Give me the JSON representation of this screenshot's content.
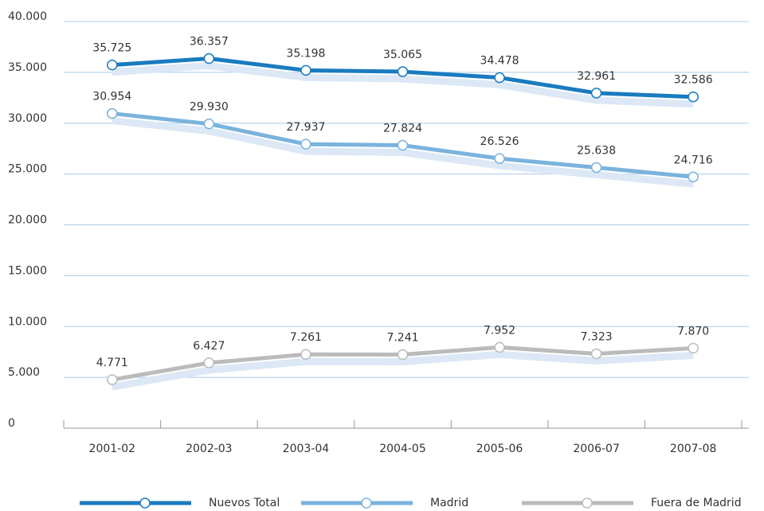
{
  "chart_data": {
    "type": "line",
    "categories": [
      "2001-02",
      "2002-03",
      "2003-04",
      "2004-05",
      "2005-06",
      "2006-07",
      "2007-08"
    ],
    "series": [
      {
        "name": "Nuevos Total",
        "color": "#1a7bbf",
        "values": [
          35725,
          36357,
          35198,
          35065,
          34478,
          32961,
          32586
        ],
        "value_labels": [
          "35.725",
          "36.357",
          "35.198",
          "35.065",
          "34.478",
          "32.961",
          "32.586"
        ]
      },
      {
        "name": "Madrid",
        "color": "#7ab3dd",
        "values": [
          30954,
          29930,
          27937,
          27824,
          26526,
          25638,
          24716
        ],
        "value_labels": [
          "30.954",
          "29.930",
          "27.937",
          "27.824",
          "26.526",
          "25.638",
          "24.716"
        ]
      },
      {
        "name": "Fuera de Madrid",
        "color": "#bbbbbb",
        "values": [
          4771,
          6427,
          7261,
          7241,
          7952,
          7323,
          7870
        ],
        "value_labels": [
          "4.771",
          "6.427",
          "7.261",
          "7.241",
          "7.952",
          "7.323",
          "7.870"
        ]
      }
    ],
    "ylim": [
      0,
      40000
    ],
    "yticks": [
      0,
      {
        "value": 5000,
        "label": "5.000"
      },
      {
        "value": 10000,
        "label": "10.000"
      },
      {
        "value": 15000,
        "label": "15.000"
      },
      {
        "value": 20000,
        "label": "20.000"
      },
      {
        "value": 25000,
        "label": "25.000"
      },
      {
        "value": 30000,
        "label": "30.000"
      },
      {
        "value": 35000,
        "label": "35.000"
      },
      {
        "value": 40000,
        "label": "40.000"
      }
    ],
    "grid": true,
    "legend": "bottom"
  }
}
